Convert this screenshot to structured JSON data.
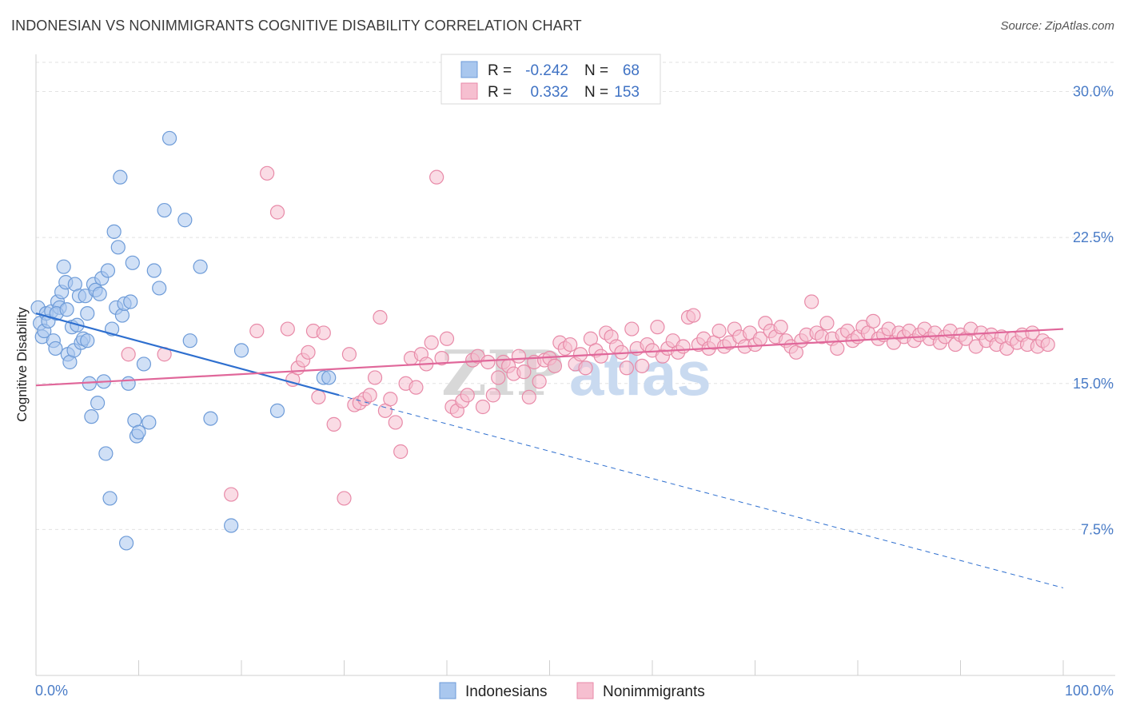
{
  "title": "INDONESIAN VS NONIMMIGRANTS COGNITIVE DISABILITY CORRELATION CHART",
  "source": "Source: ZipAtlas.com",
  "watermark": {
    "zip": "ZIP",
    "atlas": "atlas"
  },
  "chart_data": {
    "type": "scatter",
    "title": "INDONESIAN VS NONIMMIGRANTS COGNITIVE DISABILITY CORRELATION CHART",
    "xlabel": "",
    "ylabel": "Cognitive Disability",
    "xlim": [
      0,
      100
    ],
    "ylim": [
      0,
      31.5
    ],
    "x_tick_labels": [
      "0.0%",
      "100.0%"
    ],
    "y_ticks": [
      7.5,
      15.0,
      22.5,
      30.0
    ],
    "y_tick_labels": [
      "7.5%",
      "15.0%",
      "22.5%",
      "30.0%"
    ],
    "grid": true,
    "legend_placement": "top-center",
    "legend": [
      {
        "r_label": "R =",
        "r_value": "-0.242",
        "n_label": "N =",
        "n_value": "68",
        "color": "#a9c7ee",
        "stroke": "#6d9bd8"
      },
      {
        "r_label": "R =",
        "r_value": "0.332",
        "n_label": "N =",
        "n_value": "153",
        "color": "#f6bfd0",
        "stroke": "#e88aa8"
      }
    ],
    "series": [
      {
        "name": "Indonesians",
        "color": "#a9c7ee",
        "stroke": "#6d9bd8",
        "line_color": "#2e6fcf",
        "trend": {
          "x0": 0,
          "y0": 18.6,
          "x1": 29.5,
          "y1": 14.4,
          "dash_to_x": 100,
          "dash_to_y": 4.5
        },
        "points": [
          [
            0.2,
            18.9
          ],
          [
            0.4,
            18.1
          ],
          [
            0.6,
            17.4
          ],
          [
            0.8,
            17.7
          ],
          [
            1.0,
            18.6
          ],
          [
            1.2,
            18.2
          ],
          [
            1.5,
            18.7
          ],
          [
            1.7,
            17.2
          ],
          [
            1.9,
            16.8
          ],
          [
            2.1,
            19.2
          ],
          [
            2.3,
            18.9
          ],
          [
            2.5,
            19.7
          ],
          [
            2.7,
            21.0
          ],
          [
            2.9,
            20.2
          ],
          [
            3.1,
            16.5
          ],
          [
            3.3,
            16.1
          ],
          [
            3.5,
            17.9
          ],
          [
            3.7,
            16.7
          ],
          [
            3.8,
            20.1
          ],
          [
            4.0,
            18.0
          ],
          [
            4.2,
            19.5
          ],
          [
            4.4,
            17.1
          ],
          [
            4.6,
            17.3
          ],
          [
            4.8,
            19.5
          ],
          [
            5.0,
            17.2
          ],
          [
            5.2,
            15.0
          ],
          [
            5.4,
            13.3
          ],
          [
            5.6,
            20.1
          ],
          [
            5.8,
            19.8
          ],
          [
            6.0,
            14.0
          ],
          [
            6.2,
            19.6
          ],
          [
            6.4,
            20.4
          ],
          [
            6.6,
            15.1
          ],
          [
            6.8,
            11.4
          ],
          [
            7.0,
            20.8
          ],
          [
            7.2,
            9.1
          ],
          [
            7.4,
            17.8
          ],
          [
            7.6,
            22.8
          ],
          [
            7.8,
            18.9
          ],
          [
            8.0,
            22.0
          ],
          [
            8.2,
            25.6
          ],
          [
            8.4,
            18.5
          ],
          [
            8.6,
            19.1
          ],
          [
            8.8,
            6.8
          ],
          [
            9.0,
            15.0
          ],
          [
            9.2,
            19.2
          ],
          [
            9.4,
            21.2
          ],
          [
            9.6,
            13.1
          ],
          [
            9.8,
            12.3
          ],
          [
            10.0,
            12.5
          ],
          [
            10.5,
            16.0
          ],
          [
            11.0,
            13.0
          ],
          [
            11.5,
            20.8
          ],
          [
            12.0,
            19.9
          ],
          [
            12.5,
            23.9
          ],
          [
            13.0,
            27.6
          ],
          [
            14.5,
            23.4
          ],
          [
            15.0,
            17.2
          ],
          [
            16.0,
            21.0
          ],
          [
            17.0,
            13.2
          ],
          [
            19.0,
            7.7
          ],
          [
            20.0,
            16.7
          ],
          [
            23.5,
            13.6
          ],
          [
            28.0,
            15.3
          ],
          [
            28.5,
            15.3
          ],
          [
            2.0,
            18.6
          ],
          [
            3.0,
            18.8
          ],
          [
            5.0,
            18.6
          ]
        ]
      },
      {
        "name": "Nonimmigrants",
        "color": "#f6bfd0",
        "stroke": "#e88aa8",
        "line_color": "#e0679a",
        "trend": {
          "x0": 0,
          "y0": 14.9,
          "x1": 100,
          "y1": 17.8
        },
        "points": [
          [
            9.0,
            16.5
          ],
          [
            12.5,
            16.5
          ],
          [
            19.0,
            9.3
          ],
          [
            21.5,
            17.7
          ],
          [
            22.5,
            25.8
          ],
          [
            23.5,
            23.8
          ],
          [
            24.5,
            17.8
          ],
          [
            25.0,
            15.2
          ],
          [
            25.5,
            15.8
          ],
          [
            26.0,
            16.2
          ],
          [
            26.5,
            16.6
          ],
          [
            27.0,
            17.7
          ],
          [
            27.5,
            14.3
          ],
          [
            28.0,
            17.6
          ],
          [
            29.0,
            12.9
          ],
          [
            30.0,
            9.1
          ],
          [
            30.5,
            16.5
          ],
          [
            31.0,
            13.9
          ],
          [
            31.5,
            14.0
          ],
          [
            32.0,
            14.2
          ],
          [
            32.5,
            14.4
          ],
          [
            33.0,
            15.3
          ],
          [
            33.5,
            18.4
          ],
          [
            34.0,
            13.6
          ],
          [
            34.5,
            14.2
          ],
          [
            35.0,
            13.0
          ],
          [
            35.5,
            11.5
          ],
          [
            36.0,
            15.0
          ],
          [
            36.5,
            16.3
          ],
          [
            37.0,
            14.8
          ],
          [
            37.5,
            16.5
          ],
          [
            38.0,
            16.0
          ],
          [
            38.5,
            17.1
          ],
          [
            39.0,
            25.6
          ],
          [
            39.5,
            16.3
          ],
          [
            40.0,
            17.3
          ],
          [
            40.5,
            13.8
          ],
          [
            41.0,
            13.6
          ],
          [
            41.5,
            14.1
          ],
          [
            42.0,
            14.4
          ],
          [
            42.5,
            16.2
          ],
          [
            43.0,
            16.4
          ],
          [
            43.5,
            13.8
          ],
          [
            44.0,
            16.1
          ],
          [
            44.5,
            14.4
          ],
          [
            45.0,
            15.3
          ],
          [
            45.5,
            16.1
          ],
          [
            46.0,
            15.9
          ],
          [
            46.5,
            15.5
          ],
          [
            47.0,
            16.4
          ],
          [
            47.5,
            15.6
          ],
          [
            48.0,
            14.3
          ],
          [
            48.5,
            16.1
          ],
          [
            49.0,
            15.1
          ],
          [
            49.5,
            16.2
          ],
          [
            50.0,
            16.3
          ],
          [
            50.5,
            15.9
          ],
          [
            51.0,
            17.1
          ],
          [
            51.5,
            16.8
          ],
          [
            52.0,
            17.0
          ],
          [
            52.5,
            16.0
          ],
          [
            53.0,
            16.5
          ],
          [
            53.5,
            15.8
          ],
          [
            54.0,
            17.3
          ],
          [
            54.5,
            16.7
          ],
          [
            55.0,
            16.4
          ],
          [
            55.5,
            17.6
          ],
          [
            56.0,
            17.4
          ],
          [
            56.5,
            16.9
          ],
          [
            57.0,
            16.6
          ],
          [
            57.5,
            15.8
          ],
          [
            58.0,
            17.8
          ],
          [
            58.5,
            16.8
          ],
          [
            59.0,
            15.9
          ],
          [
            59.5,
            17.0
          ],
          [
            60.0,
            16.7
          ],
          [
            60.5,
            17.9
          ],
          [
            61.0,
            16.4
          ],
          [
            61.5,
            16.8
          ],
          [
            62.0,
            17.2
          ],
          [
            62.5,
            16.6
          ],
          [
            63.0,
            16.9
          ],
          [
            63.5,
            18.4
          ],
          [
            64.0,
            18.5
          ],
          [
            64.5,
            17.0
          ],
          [
            65.0,
            17.3
          ],
          [
            65.5,
            16.8
          ],
          [
            66.0,
            17.1
          ],
          [
            66.5,
            17.7
          ],
          [
            67.0,
            16.9
          ],
          [
            67.5,
            17.1
          ],
          [
            68.0,
            17.8
          ],
          [
            68.5,
            17.4
          ],
          [
            69.0,
            16.9
          ],
          [
            69.5,
            17.6
          ],
          [
            70.0,
            17.0
          ],
          [
            70.5,
            17.3
          ],
          [
            71.0,
            18.1
          ],
          [
            71.5,
            17.7
          ],
          [
            72.0,
            17.4
          ],
          [
            72.5,
            17.9
          ],
          [
            73.0,
            17.2
          ],
          [
            73.5,
            16.9
          ],
          [
            74.0,
            16.6
          ],
          [
            74.5,
            17.2
          ],
          [
            75.0,
            17.5
          ],
          [
            75.5,
            19.2
          ],
          [
            76.0,
            17.6
          ],
          [
            76.5,
            17.4
          ],
          [
            77.0,
            18.1
          ],
          [
            77.5,
            17.3
          ],
          [
            78.0,
            16.8
          ],
          [
            78.5,
            17.5
          ],
          [
            79.0,
            17.7
          ],
          [
            79.5,
            17.2
          ],
          [
            80.0,
            17.4
          ],
          [
            80.5,
            17.9
          ],
          [
            81.0,
            17.6
          ],
          [
            81.5,
            18.2
          ],
          [
            82.0,
            17.3
          ],
          [
            82.5,
            17.5
          ],
          [
            83.0,
            17.8
          ],
          [
            83.5,
            17.1
          ],
          [
            84.0,
            17.6
          ],
          [
            84.5,
            17.4
          ],
          [
            85.0,
            17.7
          ],
          [
            85.5,
            17.2
          ],
          [
            86.0,
            17.5
          ],
          [
            86.5,
            17.8
          ],
          [
            87.0,
            17.3
          ],
          [
            87.5,
            17.6
          ],
          [
            88.0,
            17.1
          ],
          [
            88.5,
            17.4
          ],
          [
            89.0,
            17.7
          ],
          [
            89.5,
            17.0
          ],
          [
            90.0,
            17.5
          ],
          [
            90.5,
            17.3
          ],
          [
            91.0,
            17.8
          ],
          [
            91.5,
            16.9
          ],
          [
            92.0,
            17.6
          ],
          [
            92.5,
            17.2
          ],
          [
            93.0,
            17.5
          ],
          [
            93.5,
            17.0
          ],
          [
            94.0,
            17.4
          ],
          [
            94.5,
            16.8
          ],
          [
            95.0,
            17.3
          ],
          [
            95.5,
            17.1
          ],
          [
            96.0,
            17.5
          ],
          [
            96.5,
            17.0
          ],
          [
            97.0,
            17.6
          ],
          [
            97.5,
            16.9
          ],
          [
            98.0,
            17.2
          ],
          [
            98.5,
            17.0
          ]
        ]
      }
    ]
  }
}
